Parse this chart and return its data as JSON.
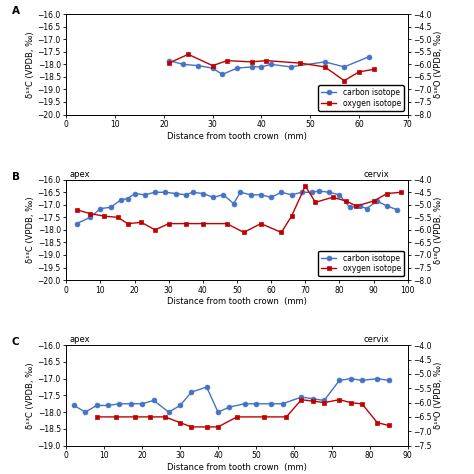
{
  "panel_A": {
    "label": "A",
    "carbon_x": [
      21,
      24,
      27,
      30,
      32,
      35,
      38,
      40,
      42,
      46,
      53,
      57,
      62
    ],
    "carbon_y": [
      -17.85,
      -18.0,
      -18.05,
      -18.15,
      -18.4,
      -18.15,
      -18.1,
      -18.1,
      -18.0,
      -18.1,
      -17.9,
      -18.1,
      -17.7
    ],
    "oxygen_x": [
      21,
      25,
      30,
      33,
      38,
      41,
      48,
      53,
      57,
      60,
      63
    ],
    "oxygen_y": [
      -5.95,
      -5.6,
      -6.05,
      -5.85,
      -5.9,
      -5.85,
      -5.95,
      -6.1,
      -6.65,
      -6.3,
      -6.2
    ],
    "xlim": [
      0,
      70
    ],
    "xticks": [
      0,
      10,
      20,
      30,
      40,
      50,
      60,
      70
    ],
    "carbon_ylim": [
      -20.0,
      -16.0
    ],
    "carbon_yticks": [
      -20.0,
      -19.5,
      -19.0,
      -18.5,
      -18.0,
      -17.5,
      -17.0,
      -16.5,
      -16.0
    ],
    "oxygen_ylim": [
      -8.0,
      -4.0
    ],
    "oxygen_yticks": [
      -8.0,
      -7.5,
      -7.0,
      -6.5,
      -6.0,
      -5.5,
      -5.0,
      -4.5,
      -4.0
    ],
    "xlabel": "Distance from tooth crown  (mm)",
    "carbon_ylabel": "δ¹³C (VPDB, ‰)",
    "oxygen_ylabel": "δ¹⁸O (VPDB, ‰)",
    "apex_label": false,
    "cervix_label": false,
    "legend": true
  },
  "panel_B": {
    "label": "B",
    "carbon_x": [
      3,
      7,
      10,
      13,
      16,
      18,
      20,
      23,
      26,
      29,
      32,
      35,
      37,
      40,
      43,
      46,
      49,
      51,
      54,
      57,
      60,
      63,
      66,
      69,
      72,
      74,
      77,
      80,
      83,
      86,
      88,
      91,
      94,
      97
    ],
    "carbon_y": [
      -17.75,
      -17.5,
      -17.15,
      -17.1,
      -16.8,
      -16.75,
      -16.55,
      -16.6,
      -16.5,
      -16.5,
      -16.55,
      -16.6,
      -16.5,
      -16.55,
      -16.7,
      -16.6,
      -16.95,
      -16.5,
      -16.6,
      -16.6,
      -16.7,
      -16.5,
      -16.6,
      -16.5,
      -16.5,
      -16.45,
      -16.5,
      -16.6,
      -17.1,
      -17.05,
      -17.15,
      -16.85,
      -17.05,
      -17.2
    ],
    "oxygen_x": [
      3,
      7,
      11,
      15,
      18,
      22,
      26,
      30,
      35,
      40,
      47,
      52,
      57,
      63,
      66,
      70,
      73,
      78,
      82,
      85,
      90,
      94,
      98
    ],
    "oxygen_y": [
      -5.2,
      -5.35,
      -5.45,
      -5.5,
      -5.75,
      -5.7,
      -6.0,
      -5.75,
      -5.75,
      -5.75,
      -5.75,
      -6.1,
      -5.75,
      -6.1,
      -5.45,
      -4.25,
      -4.9,
      -4.7,
      -4.85,
      -5.05,
      -4.85,
      -4.55,
      -4.5
    ],
    "xlim": [
      0,
      100
    ],
    "xticks": [
      0,
      10,
      20,
      30,
      40,
      50,
      60,
      70,
      80,
      90,
      100
    ],
    "carbon_ylim": [
      -20.0,
      -16.0
    ],
    "carbon_yticks": [
      -20.0,
      -19.5,
      -19.0,
      -18.5,
      -18.0,
      -17.5,
      -17.0,
      -16.5,
      -16.0
    ],
    "oxygen_ylim": [
      -8.0,
      -4.0
    ],
    "oxygen_yticks": [
      -8.0,
      -7.5,
      -7.0,
      -6.5,
      -6.0,
      -5.5,
      -5.0,
      -4.5,
      -4.0
    ],
    "xlabel": "Distance from tooth crown  (mm)",
    "carbon_ylabel": "δ¹³C (VPDB, ‰)",
    "oxygen_ylabel": "δ¹⁸O (VPDB, ‰)",
    "apex_label": true,
    "cervix_label": true,
    "legend": true
  },
  "panel_C": {
    "label": "C",
    "carbon_x": [
      2,
      5,
      8,
      11,
      14,
      17,
      20,
      23,
      27,
      30,
      33,
      37,
      40,
      43,
      47,
      50,
      54,
      57,
      62,
      65,
      68,
      72,
      75,
      78,
      82,
      85
    ],
    "carbon_y": [
      -17.8,
      -18.0,
      -17.8,
      -17.8,
      -17.75,
      -17.75,
      -17.75,
      -17.65,
      -18.0,
      -17.8,
      -17.4,
      -17.25,
      -18.0,
      -17.85,
      -17.75,
      -17.75,
      -17.75,
      -17.75,
      -17.55,
      -17.6,
      -17.65,
      -17.05,
      -17.0,
      -17.05,
      -17.0,
      -17.05
    ],
    "oxygen_x": [
      8,
      13,
      18,
      22,
      26,
      30,
      33,
      37,
      40,
      45,
      52,
      58,
      62,
      65,
      68,
      72,
      75,
      78,
      82,
      85
    ],
    "oxygen_y": [
      -6.5,
      -6.5,
      -6.5,
      -6.5,
      -6.5,
      -6.7,
      -6.85,
      -6.85,
      -6.85,
      -6.5,
      -6.5,
      -6.5,
      -5.9,
      -5.95,
      -6.0,
      -5.9,
      -6.0,
      -6.05,
      -6.7,
      -6.8
    ],
    "xlim": [
      0,
      90
    ],
    "xticks": [
      0,
      10,
      20,
      30,
      40,
      50,
      60,
      70,
      80,
      90
    ],
    "carbon_ylim": [
      -19.0,
      -16.0
    ],
    "carbon_yticks": [
      -19.0,
      -18.5,
      -18.0,
      -17.5,
      -17.0,
      -16.5,
      -16.0
    ],
    "oxygen_ylim": [
      -7.5,
      -4.0
    ],
    "oxygen_yticks": [
      -7.5,
      -7.0,
      -6.5,
      -6.0,
      -5.5,
      -5.0,
      -4.5,
      -4.0
    ],
    "xlabel": "Distance from tooth crown  (mm)",
    "carbon_ylabel": "δ¹³C (VPDB, ‰)",
    "oxygen_ylabel": "δ¹⁸O (VPDB, ‰)",
    "apex_label": true,
    "cervix_label": true,
    "legend": false
  },
  "carbon_color": "#4472C4",
  "oxygen_color": "#C00000",
  "marker_carbon": "o",
  "marker_oxygen": "s",
  "markersize": 3.5,
  "linewidth": 1.0,
  "font_size": 6.0,
  "label_fontsize": 7.5,
  "tick_fontsize": 5.5
}
